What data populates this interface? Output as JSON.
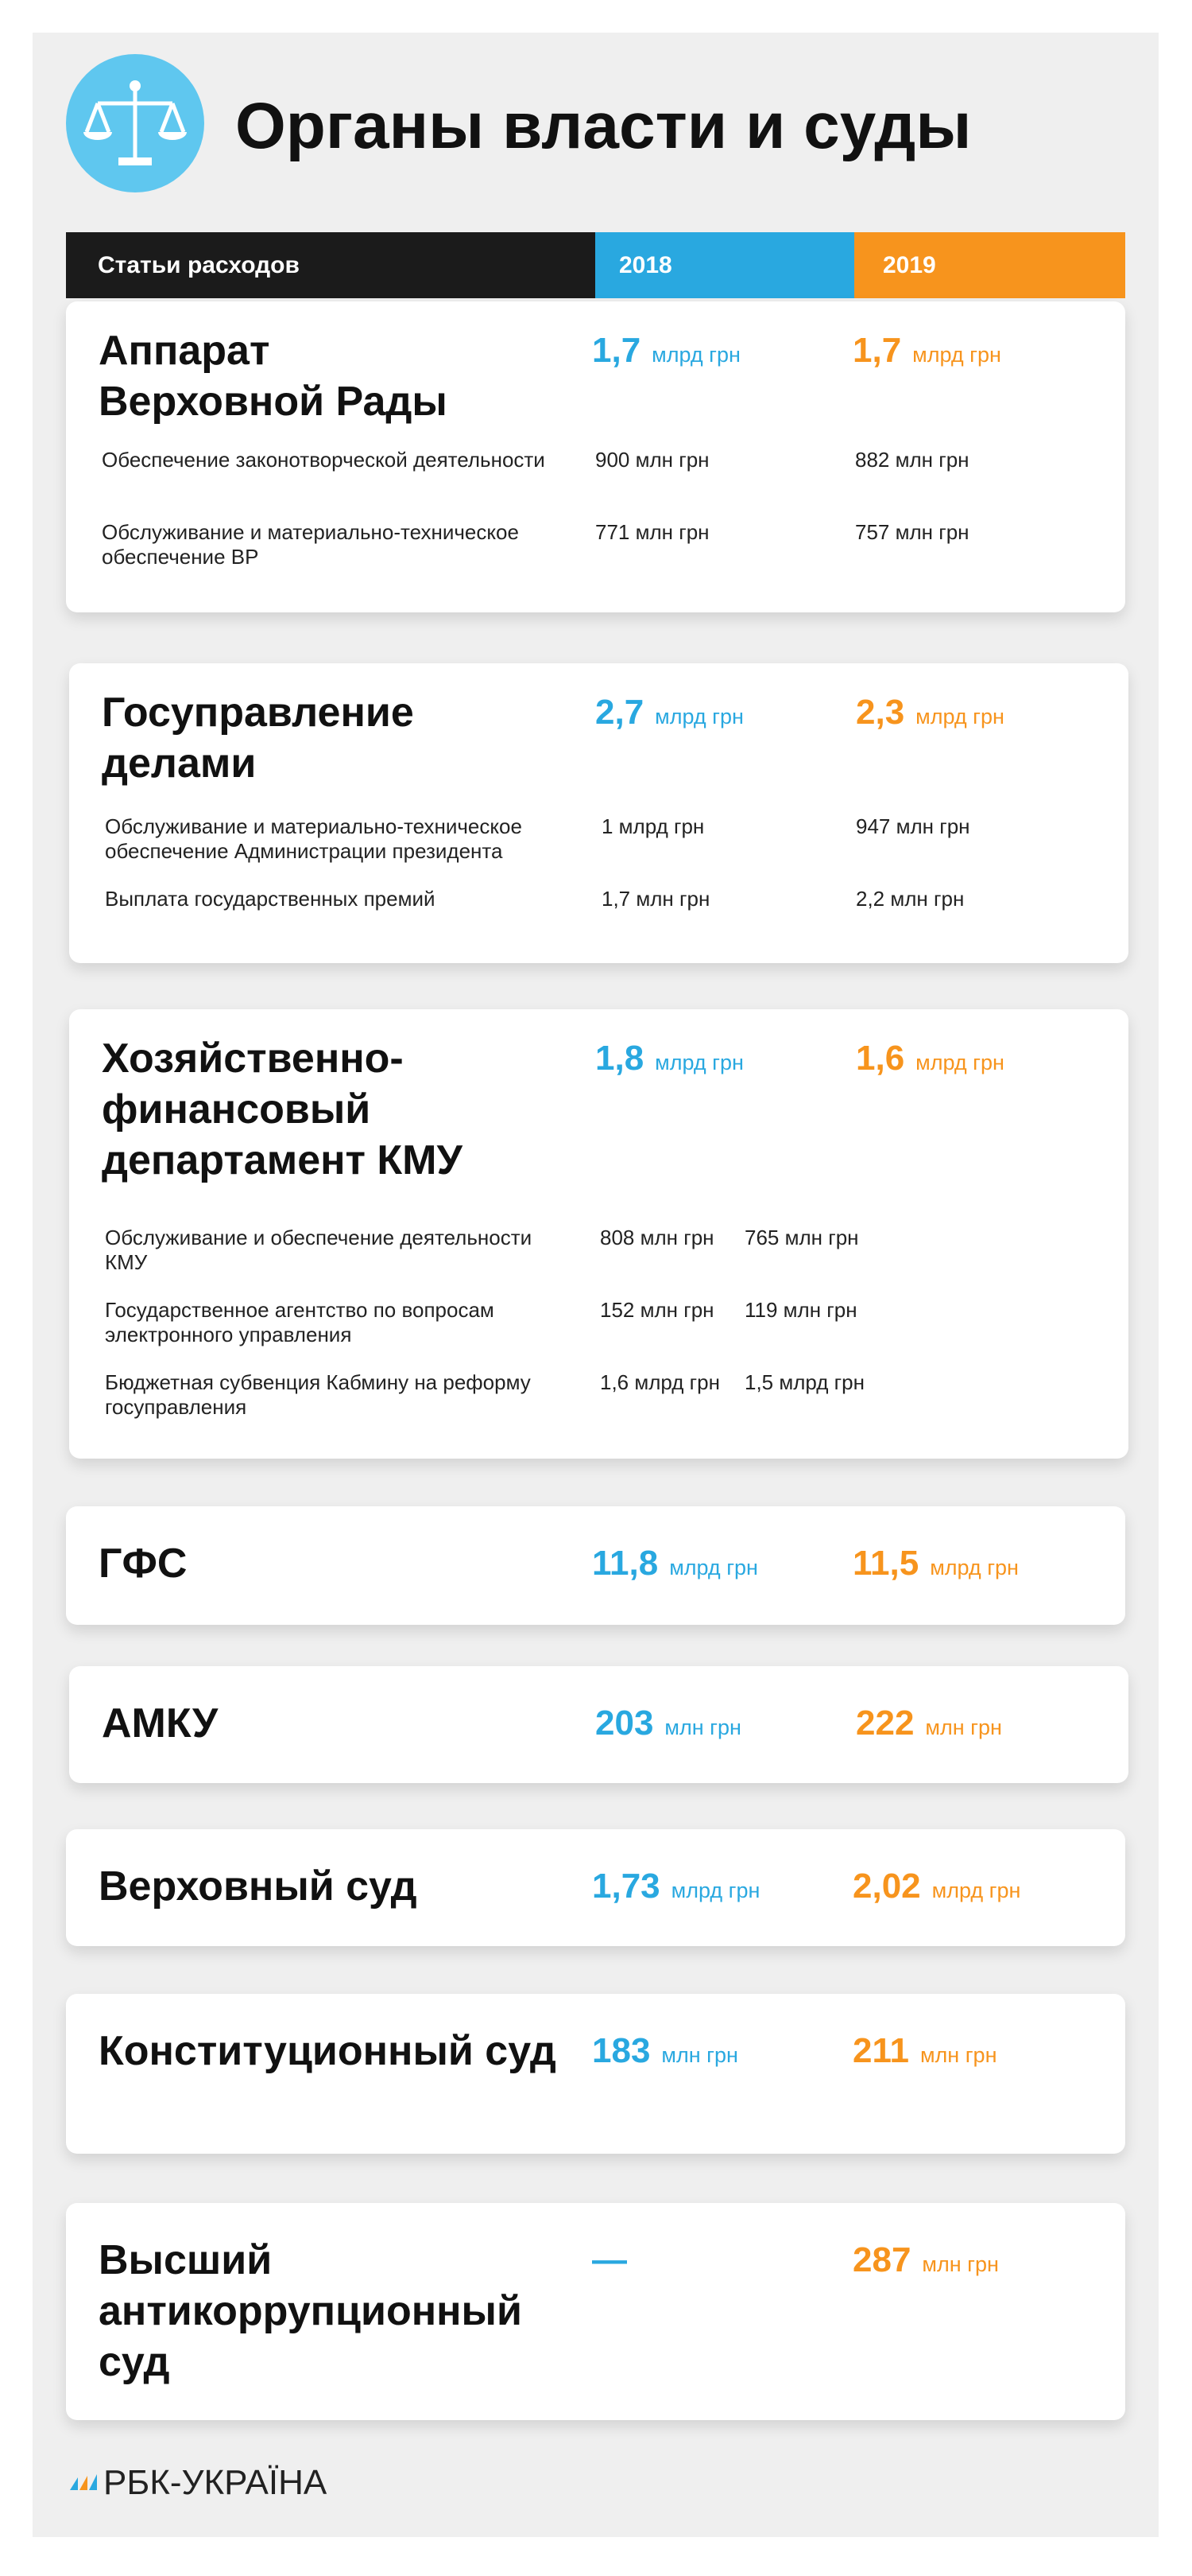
{
  "header": {
    "title": "Органы власти и суды"
  },
  "table": {
    "columns": [
      "Статьи расходов",
      "2018",
      "2019"
    ],
    "sections": [
      {
        "name": "Аппарат Верховной Рады",
        "value_2018": "1,7",
        "unit_2018": "млрд грн",
        "value_2019": "1,7",
        "unit_2019": "млрд грн",
        "items": [
          {
            "label": "Обеспечение законотворческой деятельности",
            "value_2018": "900 млн грн",
            "value_2019": "882 млн грн"
          },
          {
            "label": "Обслуживание и материально-техническое обеспечение ВР",
            "value_2018": "771 млн грн",
            "value_2019": "757 млн грн"
          }
        ]
      },
      {
        "name": "Госуправление делами",
        "value_2018": "2,7",
        "unit_2018": "млрд грн",
        "value_2019": "2,3",
        "unit_2019": "млрд грн",
        "items": [
          {
            "label": "Обслуживание и материально-техническое обеспечение Администрации президента",
            "value_2018": "1 млрд грн",
            "value_2019": "947 млн грн"
          },
          {
            "label": "Выплата государственных премий",
            "value_2018": "1,7 млн грн",
            "value_2019": "2,2 млн грн"
          }
        ]
      },
      {
        "name": "Хозяйственно-финансовый департамент КМУ",
        "value_2018": "1,8",
        "unit_2018": "млрд грн",
        "value_2019": "1,6",
        "unit_2019": "млрд грн",
        "items": [
          {
            "label": "Обслуживание и обеспечение деятельности КМУ",
            "value_2018": "808 млн грн",
            "value_2019": "765 млн грн"
          },
          {
            "label": "Государственное агентство по вопросам электронного управления",
            "value_2018": "152 млн грн",
            "value_2019": "119 млн грн"
          },
          {
            "label": "Бюджетная субвенция Кабмину на реформу госуправления",
            "value_2018": "1,6 млрд грн",
            "value_2019": "1,5 млрд грн"
          }
        ]
      },
      {
        "name": "ГФС",
        "value_2018": "11,8",
        "unit_2018": "млрд грн",
        "value_2019": "11,5",
        "unit_2019": "млрд грн",
        "items": []
      },
      {
        "name": "АМКУ",
        "value_2018": "203",
        "unit_2018": "млн грн",
        "value_2019": "222",
        "unit_2019": "млн грн",
        "items": []
      },
      {
        "name": "Верховный суд",
        "value_2018": "1,73",
        "unit_2018": "млрд грн",
        "value_2019": "2,02",
        "unit_2019": "млрд грн",
        "items": []
      },
      {
        "name": "Конституционный суд",
        "value_2018": "183",
        "unit_2018": "млн грн",
        "value_2019": "211",
        "unit_2019": "млн грн",
        "items": []
      },
      {
        "name": "Высший антикоррупционный суд",
        "value_2018": "—",
        "value_2019": "287",
        "unit_2019": "млн грн",
        "items": []
      }
    ]
  },
  "footer": {
    "logo": "РБК-УКРАЇНА"
  }
}
